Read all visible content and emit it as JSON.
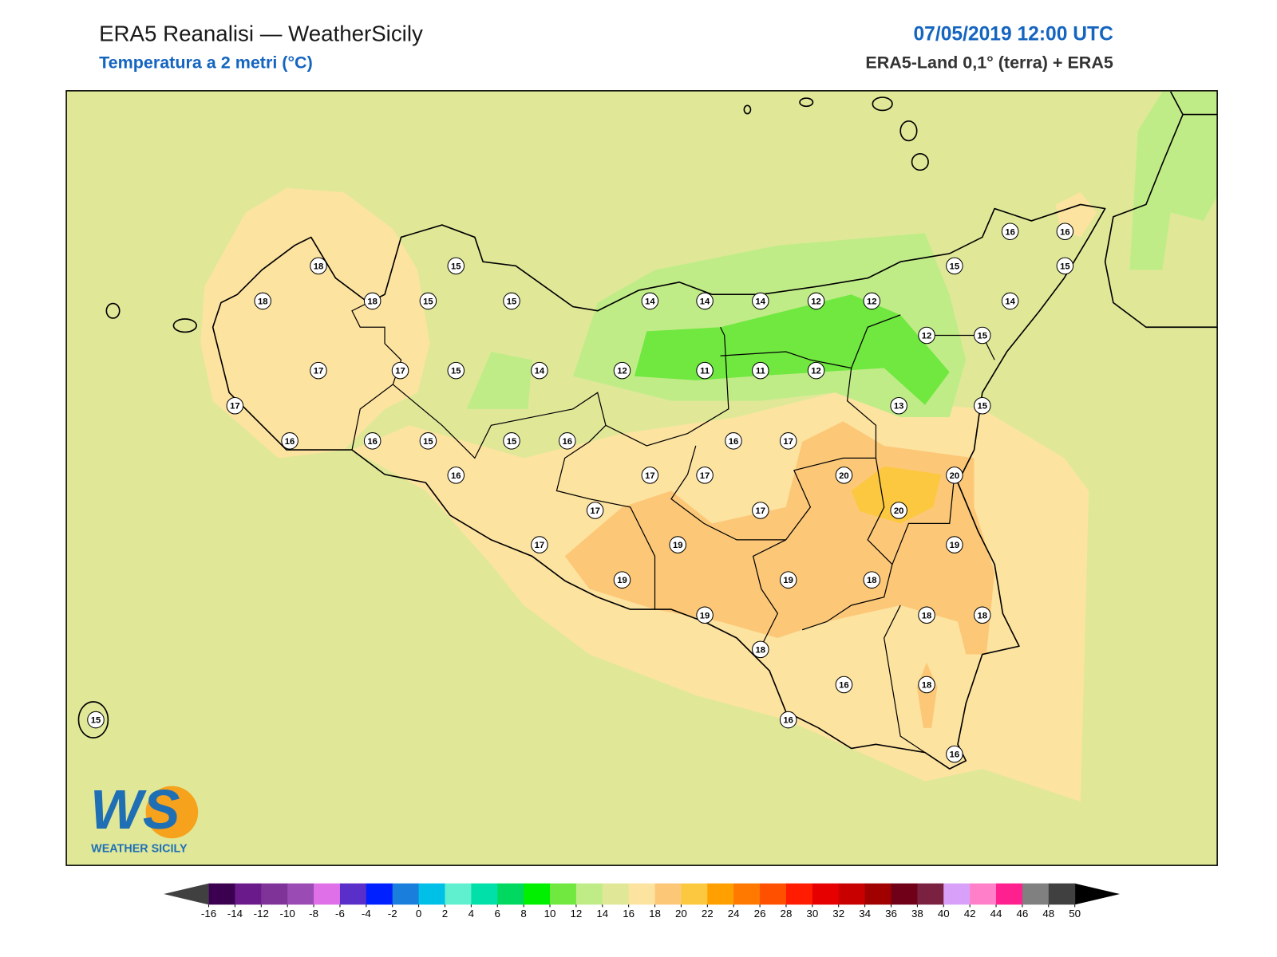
{
  "header": {
    "title": "ERA5 Reanalisi — WeatherSicily",
    "subtitle": "Temperatura a 2 metri (°C)",
    "datetime": "07/05/2019 12:00 UTC",
    "source": "ERA5-Land 0,1° (terra) + ERA5"
  },
  "stations": [
    18,
    15,
    18,
    18,
    15,
    15,
    14,
    14,
    14,
    12,
    12,
    16,
    16,
    15,
    15,
    14,
    12,
    15,
    17,
    17,
    15,
    14,
    12,
    11,
    11,
    12,
    13,
    15,
    17,
    16,
    16,
    15,
    15,
    16,
    16,
    17,
    16,
    17,
    17,
    20,
    20,
    17,
    17,
    20,
    17,
    19,
    19,
    19,
    19,
    18,
    19,
    18,
    18,
    18,
    16,
    18,
    16,
    16,
    15
  ],
  "colorbar": {
    "ticks": [
      -16,
      -14,
      -12,
      -10,
      -8,
      -6,
      -4,
      -2,
      0,
      2,
      4,
      6,
      8,
      10,
      12,
      14,
      16,
      18,
      20,
      22,
      24,
      26,
      28,
      30,
      32,
      34,
      36,
      38,
      40,
      42,
      44,
      46,
      48,
      50
    ],
    "colors": [
      "#3c0050",
      "#6a1a8a",
      "#7f3399",
      "#9b4bb4",
      "#e070e8",
      "#5a2ec8",
      "#0020ff",
      "#1a7fdc",
      "#00c0e8",
      "#60f0d0",
      "#00e0a8",
      "#00d860",
      "#00f000",
      "#70e840",
      "#c0ec88",
      "#e0e898",
      "#fde3a0",
      "#fcc878",
      "#fcc840",
      "#ffa000",
      "#ff7800",
      "#ff5000",
      "#ff1c00",
      "#e60000",
      "#c80000",
      "#a00000",
      "#700018",
      "#7a2040",
      "#d8a0f8",
      "#ff80c8",
      "#ff2090",
      "#808080",
      "#404040"
    ],
    "under_color": "#404040",
    "over_color": "#000000"
  },
  "logo": {
    "mark": "WS",
    "text": "WEATHER SICILY"
  }
}
